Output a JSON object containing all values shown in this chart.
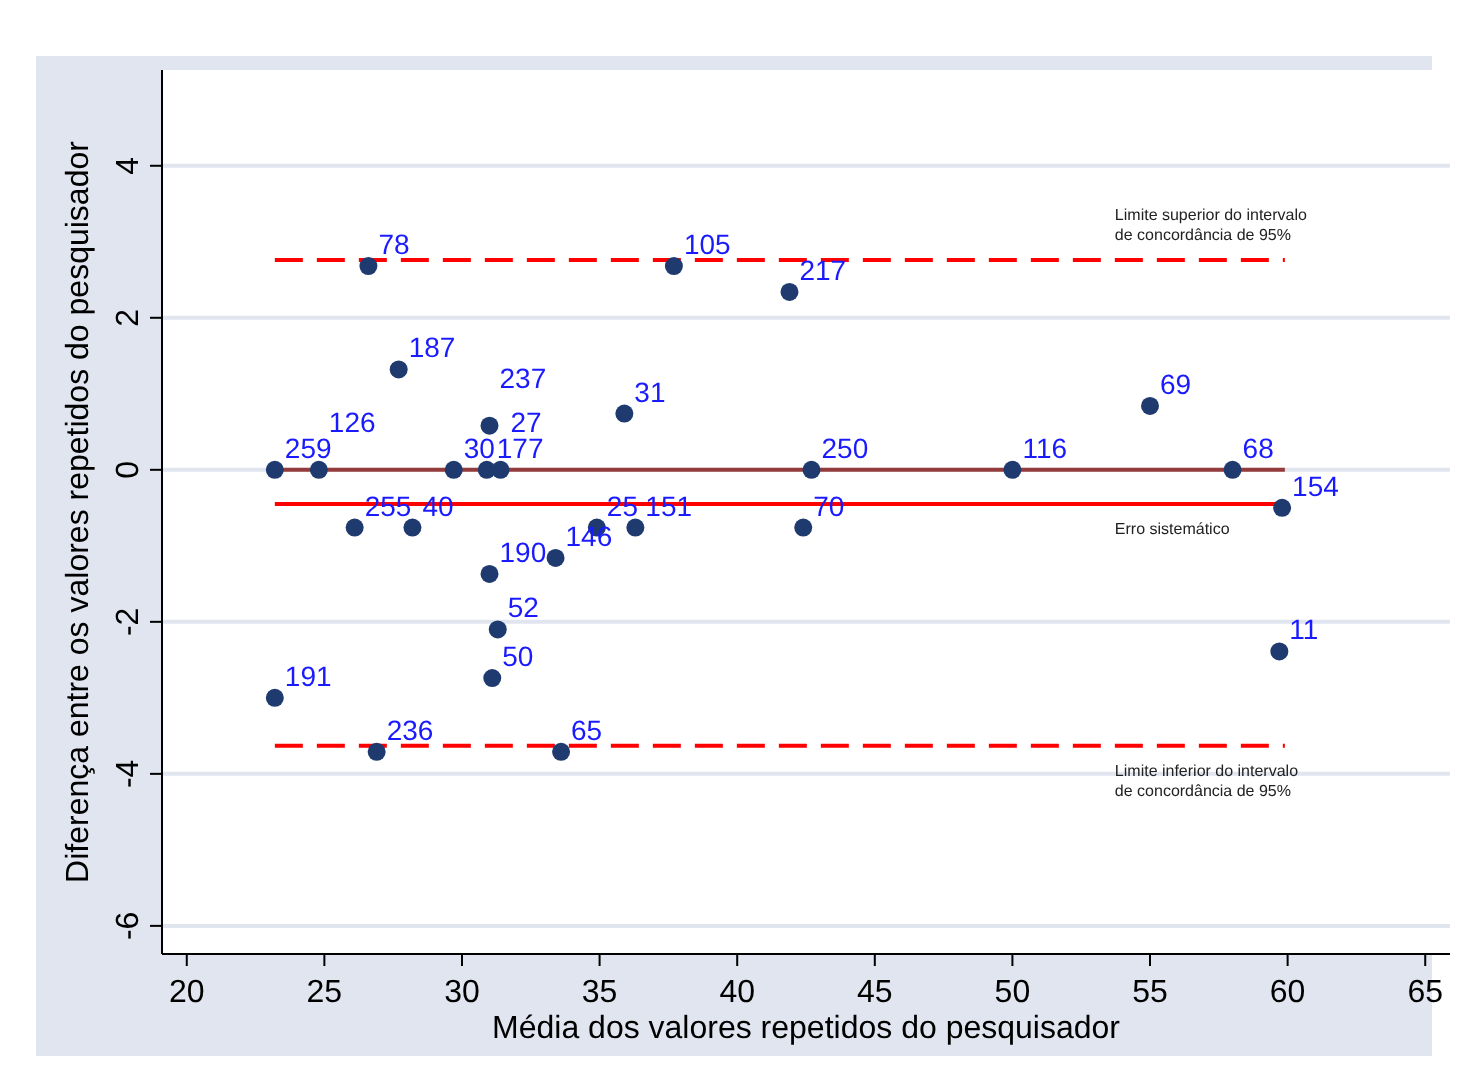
{
  "chart_data": {
    "type": "scatter",
    "xlabel": "Média dos valores repetidos do pesquisador",
    "ylabel": "Diferença entre os valores repetidos do pesquisador",
    "xlim": [
      19.1,
      65.9
    ],
    "xticks": [
      20,
      25,
      30,
      35,
      40,
      45,
      50,
      55,
      60,
      65
    ],
    "ylim": [
      -6.37,
      5.26
    ],
    "yticks": [
      -6,
      -4,
      -2,
      0,
      2,
      4
    ],
    "grid": "y",
    "marker": "circle",
    "series": [
      {
        "color": "#1f3a6e",
        "x": [
          23.2,
          24.8,
          26.1,
          26.6,
          26.9,
          27.7,
          28.2,
          29.7,
          30.9,
          31.4,
          31.0,
          31.0,
          31.1,
          31.3,
          23.2,
          33.6,
          33.4,
          34.9,
          36.3,
          35.9,
          37.7,
          41.9,
          55.0,
          42.7,
          50.0,
          58.0,
          59.8,
          42.4,
          59.7
        ],
        "values": [
          0,
          0,
          -0.76,
          2.68,
          -3.71,
          1.32,
          -0.76,
          0,
          0,
          0,
          0.58,
          -1.37,
          -2.74,
          -2.1,
          -3.0,
          -3.71,
          -1.16,
          -0.76,
          -0.76,
          0.74,
          2.68,
          2.34,
          0.84,
          0,
          0,
          0,
          -0.5,
          -0.76,
          -2.39
        ]
      },
      {
        "type": "line",
        "name": "Limite superior do intervalo\nde concordância de 95%",
        "marker": "none",
        "color": "#ff0000",
        "line_style": "dashed",
        "x": [
          23.2,
          59.9
        ],
        "values": [
          2.76,
          2.76
        ]
      },
      {
        "type": "line",
        "marker": "none",
        "color": "#943c3c",
        "line_style": "solid",
        "x": [
          23.2,
          59.9
        ],
        "values": [
          0,
          0
        ]
      },
      {
        "type": "line",
        "name": "Erro sistemático",
        "marker": "none",
        "color": "#ff0000",
        "line_style": "solid",
        "x": [
          23.2,
          59.9
        ],
        "values": [
          -0.45,
          -0.45
        ]
      },
      {
        "type": "line",
        "name": "Limite inferior do intervalo\nde concordância de 95%",
        "marker": "none",
        "color": "#ff0000",
        "line_style": "dashed",
        "x": [
          23.2,
          59.9
        ],
        "values": [
          -3.63,
          -3.63
        ]
      }
    ],
    "annotations": [
      {
        "text": "259",
        "x": 23.2,
        "y": 0
      },
      {
        "text": "126",
        "x": 24.8,
        "y": 0
      },
      {
        "text": "255",
        "x": 26.1,
        "y": -0.76
      },
      {
        "text": "78",
        "x": 26.6,
        "y": 2.68
      },
      {
        "text": "236",
        "x": 26.9,
        "y": -3.71
      },
      {
        "text": "187",
        "x": 27.7,
        "y": 1.32
      },
      {
        "text": "40",
        "x": 28.2,
        "y": -0.76
      },
      {
        "text": "30",
        "x": 29.7,
        "y": 0
      },
      {
        "text": "177",
        "x": 30.9,
        "y": 0
      },
      {
        "text": "27",
        "x": 31.4,
        "y": 0
      },
      {
        "text": "237",
        "x": 31.0,
        "y": 0.58
      },
      {
        "text": "190",
        "x": 31.0,
        "y": -1.37
      },
      {
        "text": "50",
        "x": 31.1,
        "y": -2.74
      },
      {
        "text": "52",
        "x": 31.3,
        "y": -2.1
      },
      {
        "text": "191",
        "x": 23.2,
        "y": -3.0
      },
      {
        "text": "65",
        "x": 33.6,
        "y": -3.71
      },
      {
        "text": "146",
        "x": 33.4,
        "y": -1.16
      },
      {
        "text": "25",
        "x": 34.9,
        "y": -0.76
      },
      {
        "text": "151",
        "x": 36.3,
        "y": -0.76
      },
      {
        "text": "31",
        "x": 35.9,
        "y": 0.74
      },
      {
        "text": "105",
        "x": 37.7,
        "y": 2.68
      },
      {
        "text": "217",
        "x": 41.9,
        "y": 2.34
      },
      {
        "text": "69",
        "x": 55.0,
        "y": 0.84
      },
      {
        "text": "250",
        "x": 42.7,
        "y": 0
      },
      {
        "text": "116",
        "x": 50.0,
        "y": 0
      },
      {
        "text": "68",
        "x": 58.0,
        "y": 0
      },
      {
        "text": "154",
        "x": 59.8,
        "y": -0.5
      },
      {
        "text": "70",
        "x": 42.4,
        "y": -0.76
      },
      {
        "text": "11",
        "x": 59.7,
        "y": -2.39
      }
    ]
  }
}
